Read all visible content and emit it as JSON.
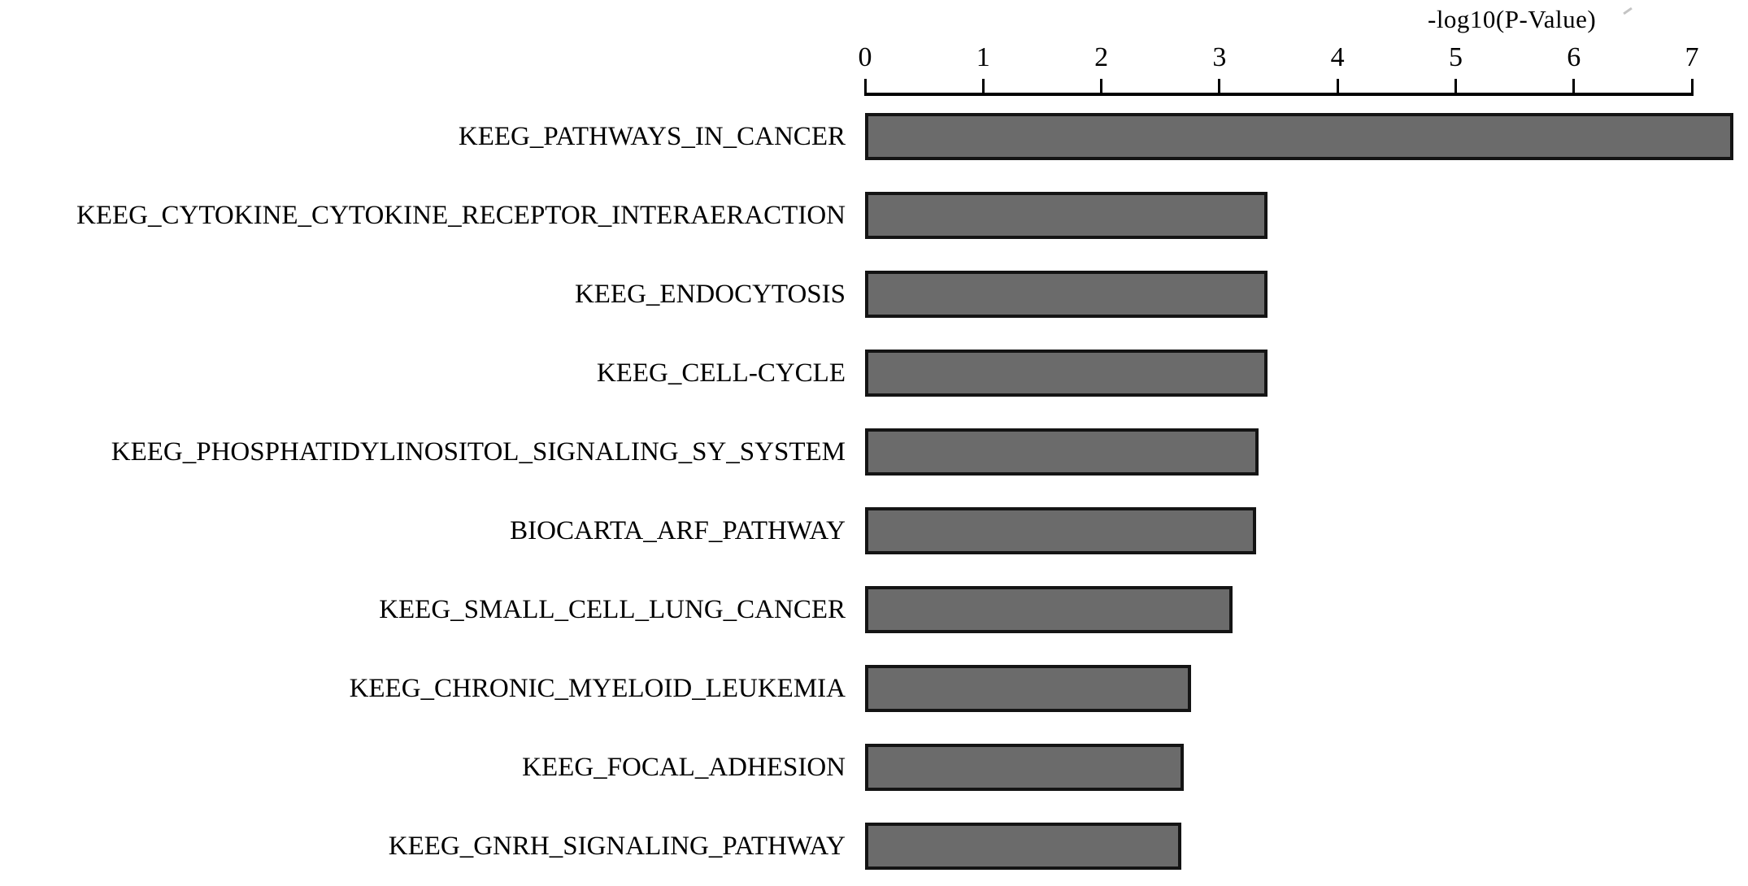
{
  "chart_data": {
    "type": "bar",
    "orientation": "horizontal",
    "title": "-log10(P-Value)",
    "xlabel": "-log10(P-Value)",
    "ylabel": "",
    "xlim": [
      0,
      7
    ],
    "x_ticks": [
      0,
      1,
      2,
      3,
      4,
      5,
      6,
      7
    ],
    "grid": false,
    "legend": "none",
    "bar_fill_color": "#6b6b6b",
    "bar_border_color": "#141414",
    "categories": [
      "KEEG_PATHWAYS_IN_CANCER",
      "KEEG_CYTOKINE_CYTOKINE_RECEPTOR_INTERAERACTION",
      "KEEG_ENDOCYTOSIS",
      "KEEG_CELL-CYCLE",
      "KEEG_PHOSPHATIDYLINOSITOL_SIGNALING_SY_SYSTEM",
      "BIOCARTA_ARF_PATHWAY",
      "KEEG_SMALL_CELL_LUNG_CANCER",
      "KEEG_CHRONIC_MYELOID_LEUKEMIA",
      "KEEG_FOCAL_ADHESION",
      "KEEG_GNRH_SIGNALING_PATHWAY"
    ],
    "values": [
      7.35,
      3.41,
      3.41,
      3.41,
      3.33,
      3.31,
      3.11,
      2.76,
      2.7,
      2.68
    ]
  }
}
